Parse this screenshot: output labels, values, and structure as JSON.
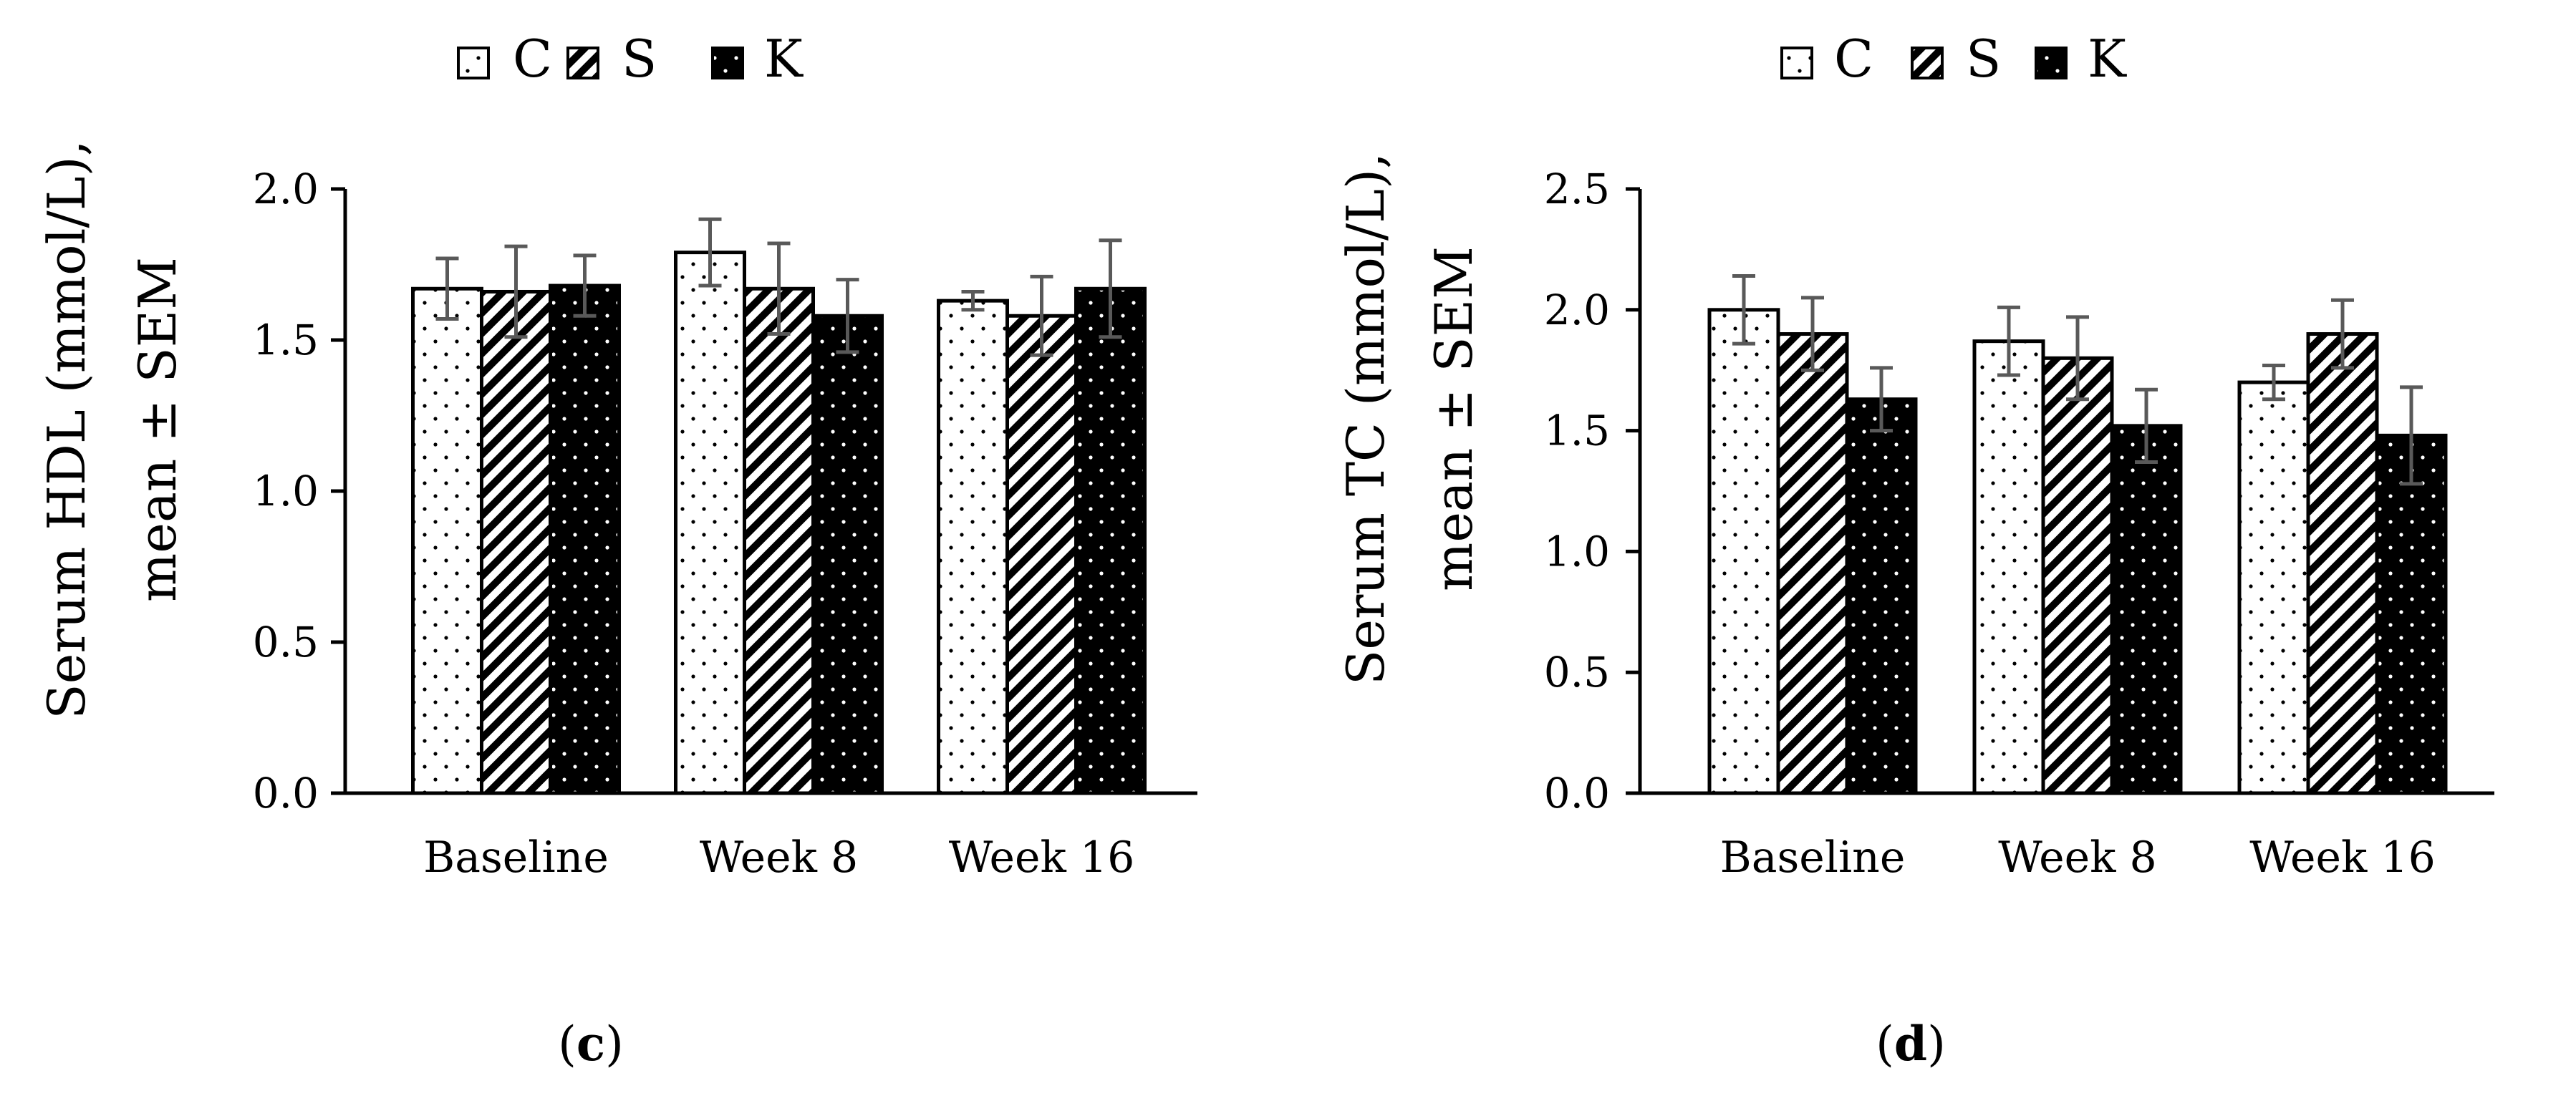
{
  "figure": {
    "panels": [
      {
        "caption_open": "(",
        "caption_letter": "c",
        "caption_close": ")"
      },
      {
        "caption_open": "(",
        "caption_letter": "d",
        "caption_close": ")"
      }
    ]
  },
  "colors": {
    "control_fill": "#ffffff",
    "s_fill": "#ffffff",
    "k_fill": "#000000",
    "outline": "#000000",
    "error_bar": "#595959"
  },
  "chart_data": [
    {
      "type": "bar",
      "title": "",
      "ylabel_line1": "Serum HDL (mmol/L),",
      "ylabel_line2": "mean ± SEM",
      "xlabel": "",
      "categories": [
        "Baseline",
        "Week 8",
        "Week 16"
      ],
      "ylim": [
        0,
        2.0
      ],
      "yticks": [
        "0.0",
        "0.5",
        "1.0",
        "1.5",
        "2.0"
      ],
      "legend": [
        "C",
        "S",
        "K"
      ],
      "series": [
        {
          "name": "C",
          "values": [
            1.67,
            1.79,
            1.63
          ],
          "sem": [
            0.1,
            0.11,
            0.03
          ]
        },
        {
          "name": "S",
          "values": [
            1.66,
            1.67,
            1.58
          ],
          "sem": [
            0.15,
            0.15,
            0.13
          ]
        },
        {
          "name": "K",
          "values": [
            1.68,
            1.58,
            1.67
          ],
          "sem": [
            0.1,
            0.12,
            0.16
          ]
        }
      ]
    },
    {
      "type": "bar",
      "title": "",
      "ylabel_line1": "Serum TC (mmol/L),",
      "ylabel_line2": "mean ± SEM",
      "xlabel": "",
      "categories": [
        "Baseline",
        "Week 8",
        "Week 16"
      ],
      "ylim": [
        0,
        2.5
      ],
      "yticks": [
        "0.0",
        "0.5",
        "1.0",
        "1.5",
        "2.0",
        "2.5"
      ],
      "legend": [
        "C",
        "S",
        "K"
      ],
      "series": [
        {
          "name": "C",
          "values": [
            2.0,
            1.87,
            1.7
          ],
          "sem": [
            0.14,
            0.14,
            0.07
          ]
        },
        {
          "name": "S",
          "values": [
            1.9,
            1.8,
            1.9
          ],
          "sem": [
            0.15,
            0.17,
            0.14
          ]
        },
        {
          "name": "K",
          "values": [
            1.63,
            1.52,
            1.48
          ],
          "sem": [
            0.13,
            0.15,
            0.2
          ]
        }
      ]
    }
  ]
}
